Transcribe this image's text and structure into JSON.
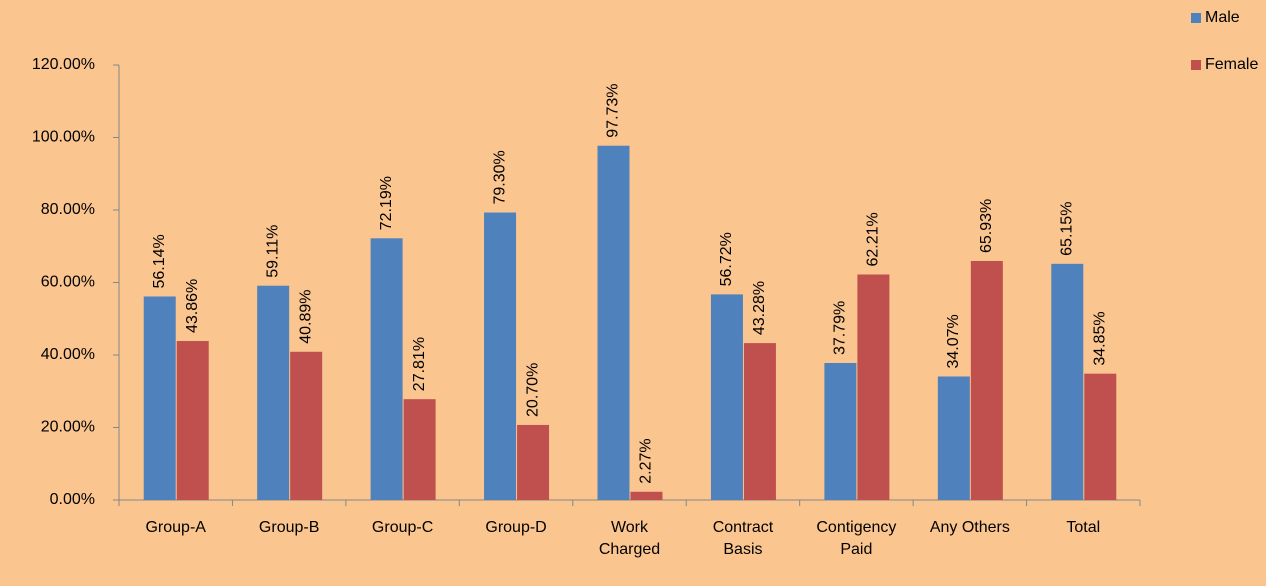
{
  "chart_data": {
    "type": "bar",
    "categories": [
      "Group-A",
      "Group-B",
      "Group-C",
      "Group-D",
      "Work\nCharged",
      "Contract\nBasis",
      "Contigency\nPaid",
      "Any Others",
      "Total"
    ],
    "series": [
      {
        "name": "Male",
        "color": "#4f81bd",
        "values": [
          56.14,
          59.11,
          72.19,
          79.3,
          97.73,
          56.72,
          37.79,
          34.07,
          65.15
        ],
        "value_labels": [
          "56.14%",
          "59.11%",
          "72.19%",
          "79.30%",
          "97.73%",
          "56.72%",
          "37.79%",
          "34.07%",
          "65.15%"
        ]
      },
      {
        "name": "Female",
        "color": "#c0504d",
        "values": [
          43.86,
          40.89,
          27.81,
          20.7,
          2.27,
          43.28,
          62.21,
          65.93,
          34.85
        ],
        "value_labels": [
          "43.86%",
          "40.89%",
          "27.81%",
          "20.70%",
          "2.27%",
          "43.28%",
          "62.21%",
          "65.93%",
          "34.85%"
        ]
      }
    ],
    "ylim": [
      0,
      120
    ],
    "yticks": [
      {
        "value": 0,
        "label": "0.00%"
      },
      {
        "value": 20,
        "label": "20.00%"
      },
      {
        "value": 40,
        "label": "40.00%"
      },
      {
        "value": 60,
        "label": "60.00%"
      },
      {
        "value": 80,
        "label": "80.00%"
      },
      {
        "value": 100,
        "label": "100.00%"
      },
      {
        "value": 120,
        "label": "120.00%"
      }
    ],
    "grid": false,
    "legend": "top-right"
  }
}
